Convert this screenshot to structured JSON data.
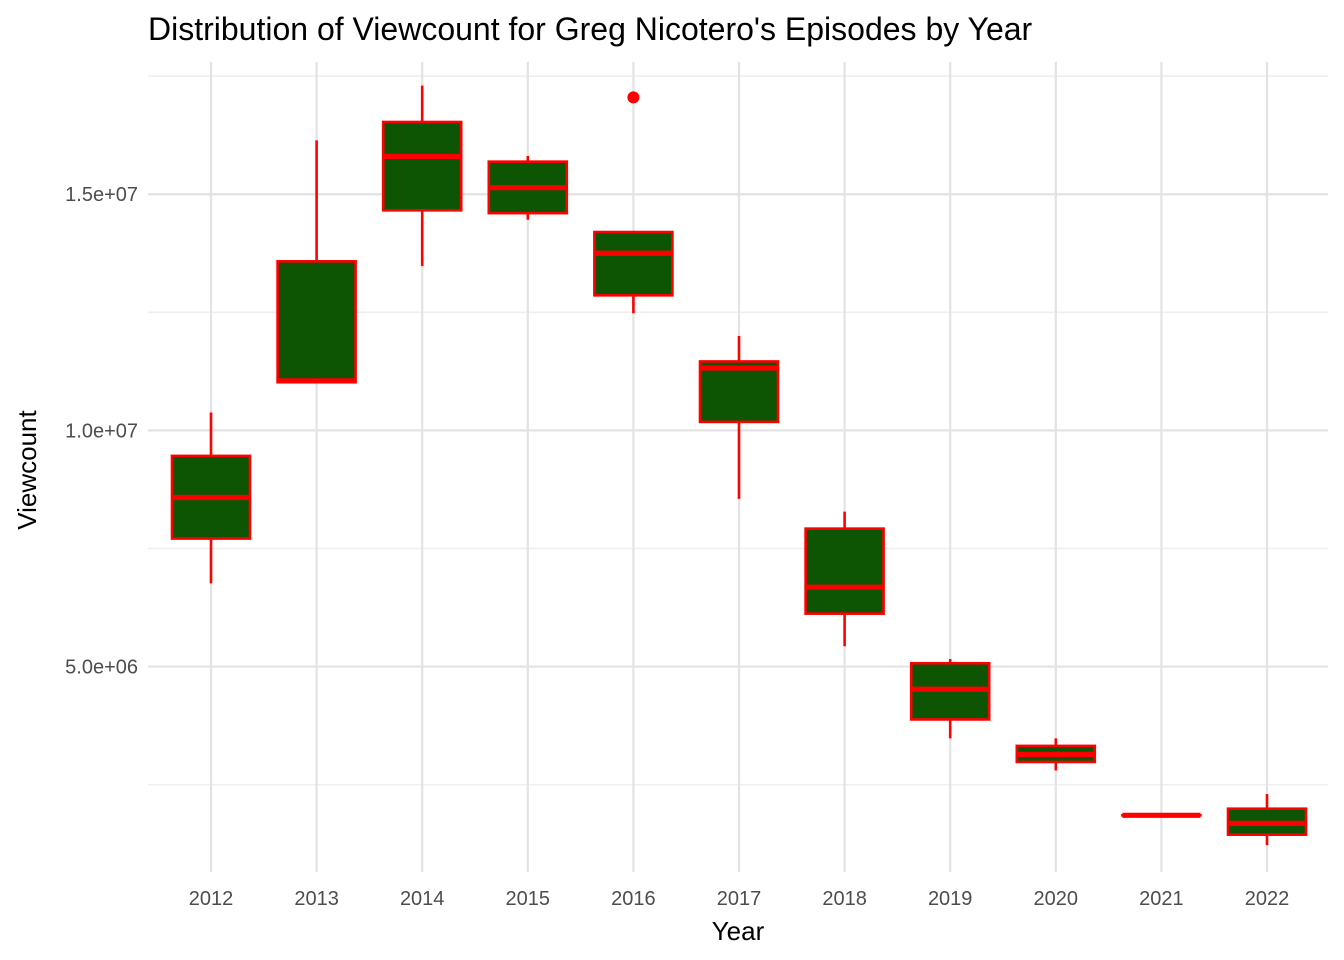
{
  "chart_data": {
    "type": "boxplot",
    "title": "Distribution of Viewcount for Greg Nicotero's Episodes by Year",
    "xlabel": "Year",
    "ylabel": "Viewcount",
    "ylim": [
      650000,
      17800000
    ],
    "y_major_ticks": [
      5000000,
      10000000,
      15000000
    ],
    "y_minor_ticks": [
      2500000,
      7500000,
      12500000,
      17500000
    ],
    "y_tick_labels": [
      "5.0e+06",
      "1.0e+07",
      "1.5e+07"
    ],
    "categories": [
      "2012",
      "2013",
      "2014",
      "2015",
      "2016",
      "2017",
      "2018",
      "2019",
      "2020",
      "2021",
      "2022"
    ],
    "boxes": [
      {
        "year": "2012",
        "whisker_low": 6760000,
        "q1": 7710000,
        "median": 8580000,
        "q3": 9460000,
        "whisker_high": 10380000,
        "outliers": []
      },
      {
        "year": "2013",
        "whisker_low": 11020000,
        "q1": 11020000,
        "median": 11050000,
        "q3": 13580000,
        "whisker_high": 16140000,
        "outliers": []
      },
      {
        "year": "2014",
        "whisker_low": 13480000,
        "q1": 14660000,
        "median": 15800000,
        "q3": 16530000,
        "whisker_high": 17300000,
        "outliers": []
      },
      {
        "year": "2015",
        "whisker_low": 14460000,
        "q1": 14600000,
        "median": 15140000,
        "q3": 15690000,
        "whisker_high": 15810000,
        "outliers": []
      },
      {
        "year": "2016",
        "whisker_low": 12480000,
        "q1": 12860000,
        "median": 13750000,
        "q3": 14200000,
        "whisker_high": 14200000,
        "outliers": [
          17050000
        ]
      },
      {
        "year": "2017",
        "whisker_low": 8550000,
        "q1": 10180000,
        "median": 11320000,
        "q3": 11460000,
        "whisker_high": 12000000,
        "outliers": []
      },
      {
        "year": "2018",
        "whisker_low": 5430000,
        "q1": 6120000,
        "median": 6680000,
        "q3": 7920000,
        "whisker_high": 8280000,
        "outliers": []
      },
      {
        "year": "2019",
        "whisker_low": 3480000,
        "q1": 3880000,
        "median": 4520000,
        "q3": 5070000,
        "whisker_high": 5160000,
        "outliers": []
      },
      {
        "year": "2020",
        "whisker_low": 2800000,
        "q1": 2980000,
        "median": 3140000,
        "q3": 3320000,
        "whisker_high": 3480000,
        "outliers": []
      },
      {
        "year": "2021",
        "whisker_low": 1850000,
        "q1": 1850000,
        "median": 1850000,
        "q3": 1850000,
        "whisker_high": 1850000,
        "outliers": []
      },
      {
        "year": "2022",
        "whisker_low": 1220000,
        "q1": 1440000,
        "median": 1680000,
        "q3": 1990000,
        "whisker_high": 2300000,
        "outliers": []
      }
    ],
    "colors": {
      "box_fill": "#0d5502",
      "box_stroke": "#ff0000",
      "outlier": "#ff0000"
    },
    "grid": true,
    "legend": "none"
  }
}
